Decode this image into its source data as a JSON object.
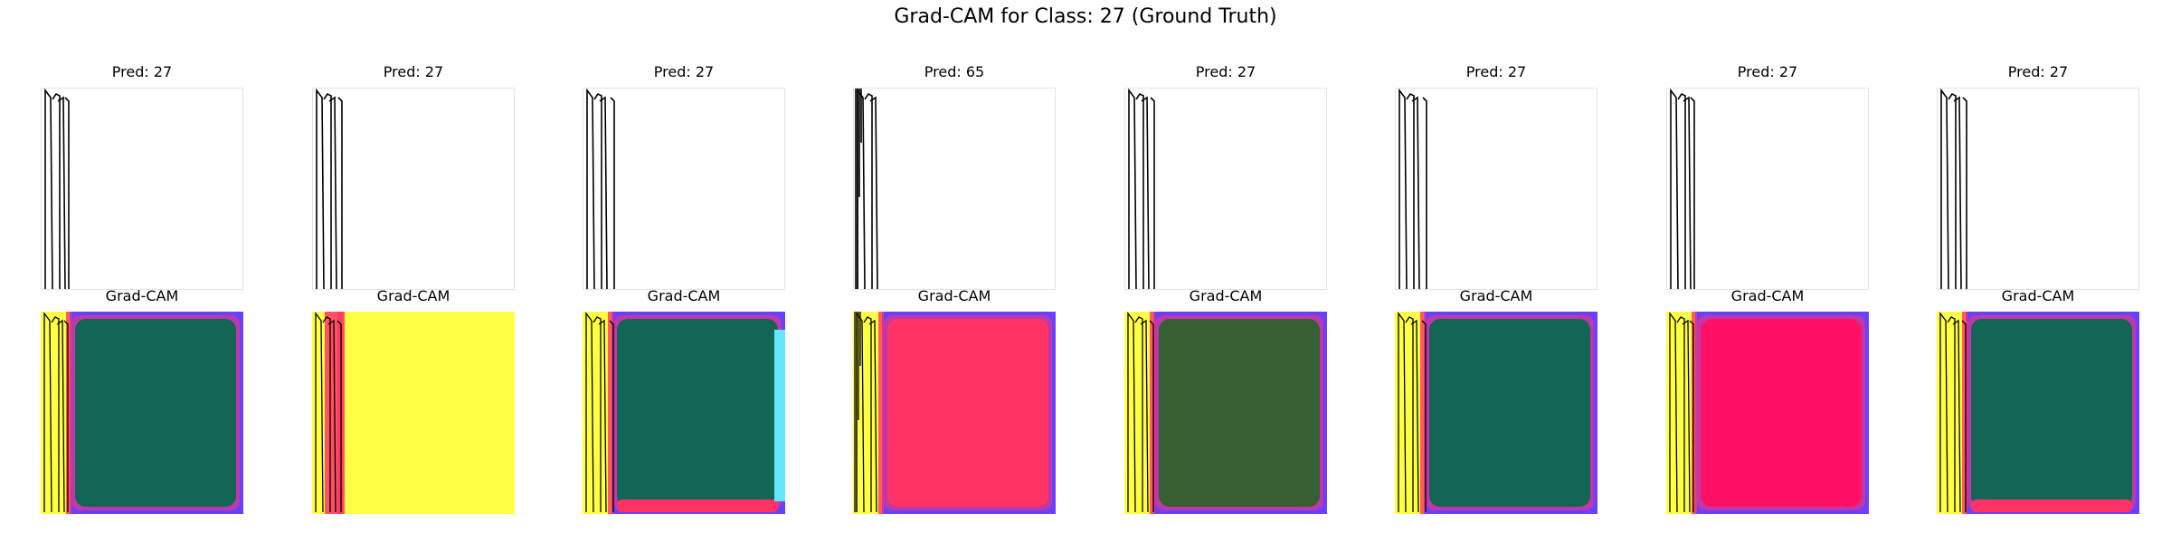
{
  "figure": {
    "suptitle": "Grad-CAM for Class: 27 (Ground Truth)",
    "gradcam_label": "Grad-CAM"
  },
  "colors": {
    "yellow": "#ffff44",
    "teal": "#136654",
    "olive": "#366033",
    "pink": "#ff3366",
    "magenta": "#ff1066",
    "violet": "#6a40ff",
    "cyan": "#66e5ff",
    "line": "#000000"
  },
  "chart_data": {
    "type": "heatmap",
    "title": "Grad-CAM for Class: 27 (Ground Truth)",
    "ground_truth_class": 27,
    "columns": [
      {
        "pred_label": "Pred: 27",
        "pred": 27,
        "heatmap_label": "Grad-CAM",
        "dominant": "teal"
      },
      {
        "pred_label": "Pred: 27",
        "pred": 27,
        "heatmap_label": "Grad-CAM",
        "dominant": "yellow"
      },
      {
        "pred_label": "Pred: 27",
        "pred": 27,
        "heatmap_label": "Grad-CAM",
        "dominant": "teal"
      },
      {
        "pred_label": "Pred: 65",
        "pred": 65,
        "heatmap_label": "Grad-CAM",
        "dominant": "pink"
      },
      {
        "pred_label": "Pred: 27",
        "pred": 27,
        "heatmap_label": "Grad-CAM",
        "dominant": "olive"
      },
      {
        "pred_label": "Pred: 27",
        "pred": 27,
        "heatmap_label": "Grad-CAM",
        "dominant": "teal"
      },
      {
        "pred_label": "Pred: 27",
        "pred": 27,
        "heatmap_label": "Grad-CAM",
        "dominant": "magenta"
      },
      {
        "pred_label": "Pred: 27",
        "pred": 27,
        "heatmap_label": "Grad-CAM",
        "dominant": "teal"
      }
    ]
  }
}
